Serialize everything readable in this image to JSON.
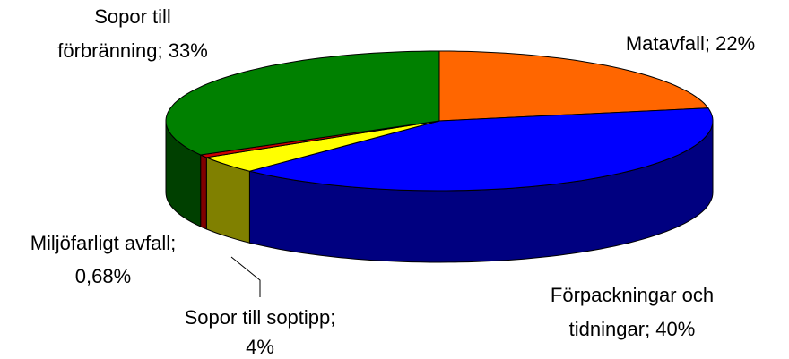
{
  "chart_data": {
    "type": "pie3d",
    "categories": [
      "Matavfall",
      "Förpackningar och tidningar",
      "Sopor till soptipp",
      "Miljöfarligt avfall",
      "Sopor till förbränning"
    ],
    "values": [
      22,
      40,
      4,
      0.68,
      33
    ],
    "value_labels": [
      [
        "Matavfall; 22%"
      ],
      [
        "Förpackningar och",
        "tidningar; 40%"
      ],
      [
        "Sopor till soptipp;",
        "4%"
      ],
      [
        "Miljöfarligt avfall;",
        "0,68%"
      ],
      [
        "Sopor till",
        "förbränning; 33%"
      ]
    ],
    "colors": [
      "#ff6600",
      "#0000ff",
      "#ffff00",
      "#cc0000",
      "#008000"
    ],
    "side_colors": [
      "#803300",
      "#000080",
      "#808000",
      "#800000",
      "#004000"
    ]
  }
}
